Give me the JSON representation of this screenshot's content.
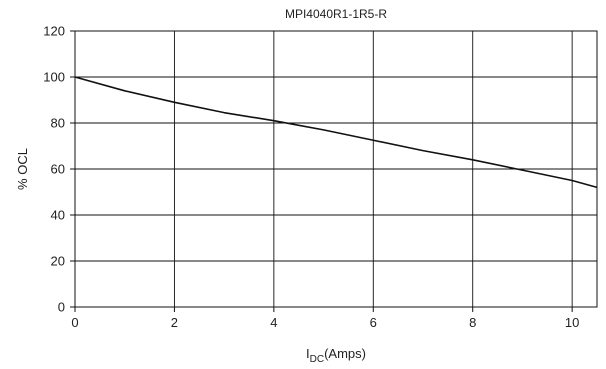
{
  "chart_data": {
    "type": "line",
    "title": "MPI4040R1-1R5-R",
    "xlabel_main": "I",
    "xlabel_sub": "DC",
    "xlabel_tail": "(Amps)",
    "ylabel": "% OCL",
    "xlim": [
      0,
      10.5
    ],
    "ylim": [
      0,
      120
    ],
    "xticks": [
      0,
      2,
      4,
      6,
      8,
      10
    ],
    "yticks": [
      0,
      20,
      40,
      60,
      80,
      100,
      120
    ],
    "grid": true,
    "colors": {
      "line": "#111111",
      "grid": "#111111",
      "background": "#ffffff"
    },
    "series": [
      {
        "x": [
          0,
          1,
          2,
          3,
          4,
          5,
          6,
          7,
          8,
          9,
          10,
          10.5
        ],
        "y": [
          100,
          94,
          89,
          84.5,
          81,
          77,
          72.5,
          68,
          64,
          59.5,
          55,
          52
        ]
      }
    ]
  }
}
